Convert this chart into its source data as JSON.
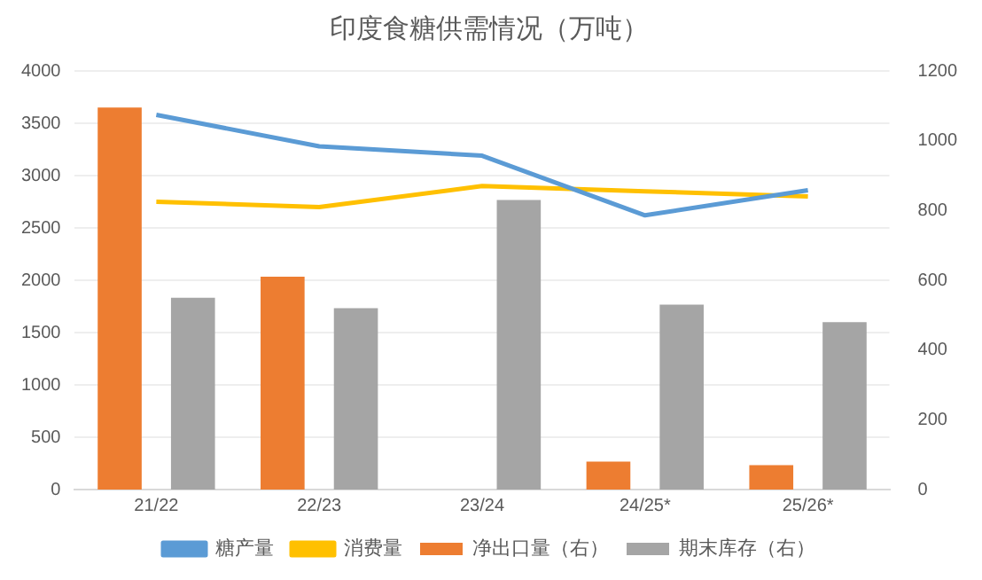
{
  "chart_data": {
    "type": "bar",
    "title": "印度食糖供需情况（万吨）",
    "categories": [
      "21/22",
      "22/23",
      "23/24",
      "24/25*",
      "25/26*"
    ],
    "series": [
      {
        "name": "净出口量（右）",
        "color": "#ed7d31",
        "axis": "y2",
        "values": [
          1095,
          610,
          null,
          80,
          70
        ]
      },
      {
        "name": "期末库存（右）",
        "color": "#a5a5a5",
        "axis": "y2",
        "values": [
          550,
          520,
          830,
          530,
          480
        ]
      },
      {
        "name": "糖产量",
        "type": "line",
        "color": "#5b9bd5",
        "values": [
          3580,
          3280,
          3190,
          2620,
          2860
        ]
      },
      {
        "name": "消费量",
        "type": "line",
        "color": "#ffc000",
        "values": [
          2750,
          2700,
          2900,
          2850,
          2800
        ]
      }
    ],
    "ylim": [
      0,
      4000
    ],
    "yticks": [
      0,
      500,
      1000,
      1500,
      2000,
      2500,
      3000,
      3500,
      4000
    ],
    "y2lim": [
      0,
      1200
    ],
    "y2ticks": [
      0,
      200,
      400,
      600,
      800,
      1000,
      1200
    ],
    "grid": "y",
    "legend": "bottom"
  }
}
